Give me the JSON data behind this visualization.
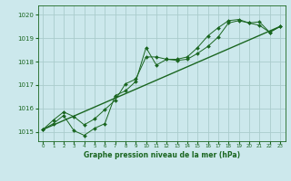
{
  "background_color": "#cce8ec",
  "grid_color": "#aacccc",
  "line_color": "#1a6620",
  "title": "Graphe pression niveau de la mer (hPa)",
  "xlabel_ticks": [
    0,
    1,
    2,
    3,
    4,
    5,
    6,
    7,
    8,
    9,
    10,
    11,
    12,
    13,
    14,
    15,
    16,
    17,
    18,
    19,
    20,
    21,
    22,
    23
  ],
  "ylim": [
    1014.6,
    1020.4
  ],
  "xlim": [
    -0.5,
    23.5
  ],
  "yticks": [
    1015,
    1016,
    1017,
    1018,
    1019,
    1020
  ],
  "series1_y": [
    1015.1,
    1015.35,
    1015.7,
    1015.05,
    1014.85,
    1015.15,
    1015.35,
    1016.55,
    1016.75,
    1017.15,
    1018.6,
    1017.85,
    1018.1,
    1018.05,
    1018.1,
    1018.35,
    1018.65,
    1019.05,
    1019.65,
    1019.75,
    1019.65,
    1019.55,
    1019.25,
    1019.5
  ],
  "series2_y": [
    1015.1,
    1015.5,
    1015.85,
    1015.65,
    1015.3,
    1015.55,
    1015.95,
    1016.35,
    1017.05,
    1017.25,
    1018.2,
    1018.2,
    1018.1,
    1018.1,
    1018.2,
    1018.6,
    1019.1,
    1019.45,
    1019.75,
    1019.8,
    1019.65,
    1019.7,
    1019.25,
    1019.5
  ],
  "series3_x": [
    0,
    23
  ],
  "series3_y": [
    1015.1,
    1019.5
  ],
  "figsize": [
    3.2,
    2.0
  ],
  "dpi": 100
}
